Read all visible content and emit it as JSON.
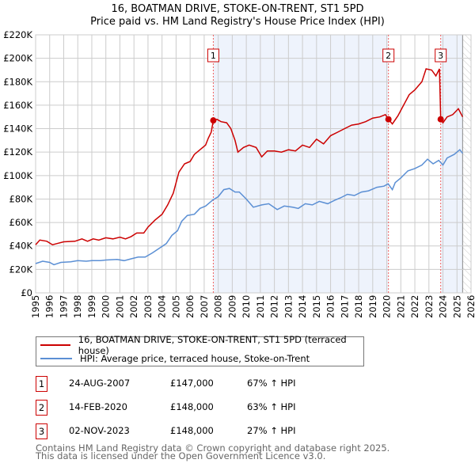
{
  "chart_data": {
    "type": "line",
    "title": "16, BOATMAN DRIVE, STOKE-ON-TRENT, ST1 5PD",
    "subtitle": "Price paid vs. HM Land Registry's House Price Index (HPI)",
    "xlim": [
      1995,
      2026
    ],
    "ylim": [
      0,
      220000
    ],
    "x_ticks": [
      "1995",
      "1996",
      "1997",
      "1998",
      "1999",
      "2000",
      "2001",
      "2002",
      "2003",
      "2004",
      "2005",
      "2006",
      "2007",
      "2008",
      "2009",
      "2010",
      "2011",
      "2012",
      "2013",
      "2014",
      "2015",
      "2016",
      "2017",
      "2018",
      "2019",
      "2020",
      "2021",
      "2022",
      "2023",
      "2024",
      "2025",
      "2026"
    ],
    "y_ticks": [
      {
        "v": 0,
        "label": "£0"
      },
      {
        "v": 20000,
        "label": "£20K"
      },
      {
        "v": 40000,
        "label": "£40K"
      },
      {
        "v": 60000,
        "label": "£60K"
      },
      {
        "v": 80000,
        "label": "£80K"
      },
      {
        "v": 100000,
        "label": "£100K"
      },
      {
        "v": 120000,
        "label": "£120K"
      },
      {
        "v": 140000,
        "label": "£140K"
      },
      {
        "v": 160000,
        "label": "£160K"
      },
      {
        "v": 180000,
        "label": "£180K"
      },
      {
        "v": 200000,
        "label": "£200K"
      },
      {
        "v": 220000,
        "label": "£220K"
      }
    ],
    "grid": true,
    "series": [
      {
        "name": "16, BOATMAN DRIVE, STOKE-ON-TRENT, ST1 5PD (terraced house)",
        "color": "#cc0000",
        "x": [
          1995,
          1995.3,
          1995.8,
          1996.2,
          1996.5,
          1997,
          1997.8,
          1998.3,
          1998.7,
          1999.1,
          1999.5,
          2000,
          2000.5,
          2001,
          2001.4,
          2001.8,
          2002.2,
          2002.7,
          2003,
          2003.5,
          2004,
          2004.4,
          2004.8,
          2005.2,
          2005.6,
          2006,
          2006.3,
          2006.7,
          2007.1,
          2007.3,
          2007.5,
          2007.65,
          2007.9,
          2008.2,
          2008.6,
          2008.9,
          2009.2,
          2009.4,
          2009.8,
          2010.2,
          2010.7,
          2011.1,
          2011.5,
          2012,
          2012.5,
          2013,
          2013.5,
          2014,
          2014.5,
          2015,
          2015.5,
          2016,
          2016.5,
          2017,
          2017.5,
          2018,
          2018.5,
          2019,
          2019.5,
          2019.9,
          2020.12,
          2020.4,
          2020.8,
          2021.2,
          2021.6,
          2022,
          2022.5,
          2022.8,
          2023.2,
          2023.5,
          2023.75,
          2023.84,
          2024,
          2024.3,
          2024.7,
          2025.1,
          2025.4
        ],
        "y": [
          41000,
          45000,
          44000,
          41000,
          42000,
          43500,
          44000,
          46000,
          44000,
          46000,
          45000,
          47000,
          46000,
          47500,
          46000,
          48000,
          51000,
          51000,
          56000,
          62000,
          67000,
          75000,
          85000,
          103000,
          110000,
          112000,
          118000,
          122000,
          126000,
          132000,
          137000,
          147000,
          148000,
          146000,
          145000,
          140000,
          130000,
          120000,
          124000,
          126000,
          124000,
          116000,
          121000,
          121000,
          120000,
          122000,
          121000,
          126000,
          124000,
          131000,
          127000,
          134000,
          137000,
          140000,
          143000,
          144000,
          146000,
          149000,
          150000,
          152000,
          148000,
          144000,
          151000,
          160000,
          169000,
          173000,
          180000,
          191000,
          190000,
          185000,
          191000,
          148000,
          145000,
          150000,
          152000,
          157000,
          150000
        ]
      },
      {
        "name": "HPI: Average price, terraced house, Stoke-on-Trent",
        "color": "#5b8fd4",
        "x": [
          1995,
          1995.5,
          1996,
          1996.3,
          1996.8,
          1997.5,
          1998,
          1998.6,
          1999,
          1999.6,
          2000,
          2000.8,
          2001.3,
          2001.8,
          2002.3,
          2002.8,
          2003.3,
          2003.8,
          2004.3,
          2004.7,
          2005.1,
          2005.4,
          2005.8,
          2006.3,
          2006.7,
          2007.1,
          2007.6,
          2008,
          2008.4,
          2008.8,
          2009.2,
          2009.5,
          2010,
          2010.5,
          2011.1,
          2011.6,
          2012.2,
          2012.7,
          2013.3,
          2013.7,
          2014.2,
          2014.7,
          2015.2,
          2015.8,
          2016.3,
          2016.7,
          2017.2,
          2017.7,
          2018.2,
          2018.7,
          2019.3,
          2019.8,
          2020.1,
          2020.4,
          2020.6,
          2021,
          2021.5,
          2022,
          2022.5,
          2022.9,
          2023.3,
          2023.7,
          2024,
          2024.3,
          2024.8,
          2025.2,
          2025.4
        ],
        "y": [
          25000,
          27000,
          26000,
          24000,
          26000,
          26500,
          27500,
          27000,
          27500,
          27500,
          28000,
          28500,
          27500,
          29000,
          30500,
          30500,
          34000,
          38000,
          42000,
          49000,
          53000,
          61000,
          66000,
          67000,
          72000,
          74000,
          79000,
          82000,
          88000,
          89000,
          86000,
          86000,
          80000,
          73000,
          75000,
          76000,
          71000,
          74000,
          73000,
          72000,
          76000,
          75000,
          78000,
          76000,
          79000,
          81000,
          84000,
          83000,
          86000,
          87000,
          90000,
          91000,
          93000,
          88000,
          94000,
          98000,
          104000,
          106000,
          109000,
          114000,
          110000,
          113000,
          109000,
          115000,
          118000,
          122000,
          119000
        ]
      }
    ],
    "sales": [
      {
        "num": "1",
        "x": 2007.65,
        "y": 147000,
        "date": "24-AUG-2007",
        "price": "£147,000",
        "hpi": "67% ↑ HPI"
      },
      {
        "num": "2",
        "x": 2020.12,
        "y": 148000,
        "date": "14-FEB-2020",
        "price": "£148,000",
        "hpi": "63% ↑ HPI"
      },
      {
        "num": "3",
        "x": 2023.84,
        "y": 148000,
        "date": "02-NOV-2023",
        "price": "£148,000",
        "hpi": "27% ↑ HPI"
      }
    ],
    "shaded_ranges": [
      [
        2007.65,
        2020.12
      ],
      [
        2023.84,
        2025.4
      ]
    ],
    "forecast_hatch_from": 2025.4,
    "legend_placement": "below"
  },
  "footer": {
    "line1": "Contains HM Land Registry data © Crown copyright and database right 2025.",
    "line2": "This data is licensed under the Open Government Licence v3.0."
  }
}
